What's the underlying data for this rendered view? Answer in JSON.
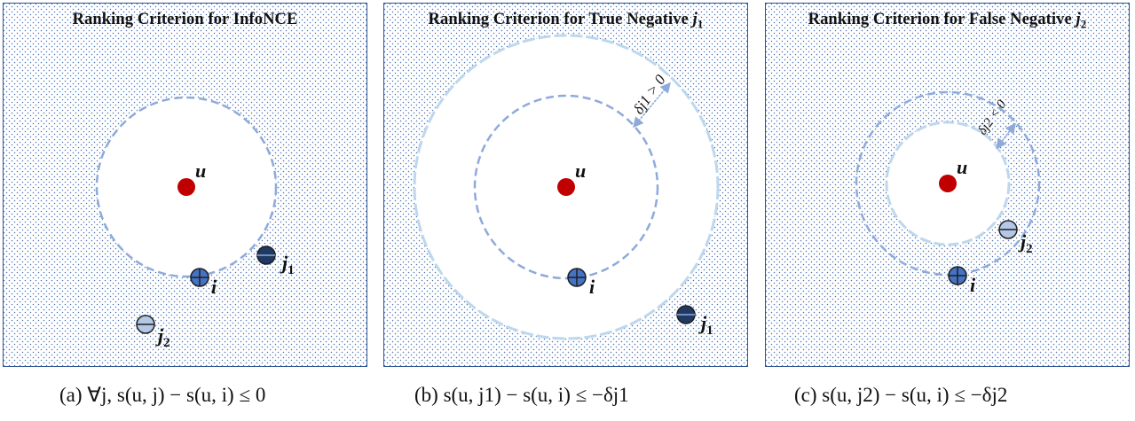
{
  "panels": [
    {
      "title": "Ranking Criterion for InfoNCE",
      "title_var": "",
      "title_sub": "",
      "caption": "(a) ∀j, s(u, j) − s(u, i) ≤ 0",
      "labels": {
        "u": "u",
        "i": "i",
        "j1": "j",
        "j1_sub": "1",
        "j2": "j",
        "j2_sub": "2"
      }
    },
    {
      "title": "Ranking Criterion for True Negative ",
      "title_var": "j",
      "title_sub": "1",
      "caption": "(b) s(u, j1) − s(u, i) ≤ −δj1",
      "labels": {
        "u": "u",
        "i": "i",
        "j1": "j",
        "j1_sub": "1",
        "delta": "δj1 > 0"
      }
    },
    {
      "title": "Ranking Criterion for False Negative ",
      "title_var": "j",
      "title_sub": "2",
      "caption": "(c) s(u, j2) − s(u, i) ≤ −δj2",
      "labels": {
        "u": "u",
        "i": "i",
        "j2": "j",
        "j2_sub": "2",
        "delta": "δj2 < 0"
      }
    }
  ],
  "colors": {
    "user": "#c00000",
    "positive": "#4472c4",
    "true_negative": "#1f3864",
    "false_negative": "#b4c7e7",
    "inner_circle": "#8eaadb",
    "outer_circle": "#bdd7ee",
    "frame": "#2f5597",
    "dots": "#4a72b8"
  }
}
